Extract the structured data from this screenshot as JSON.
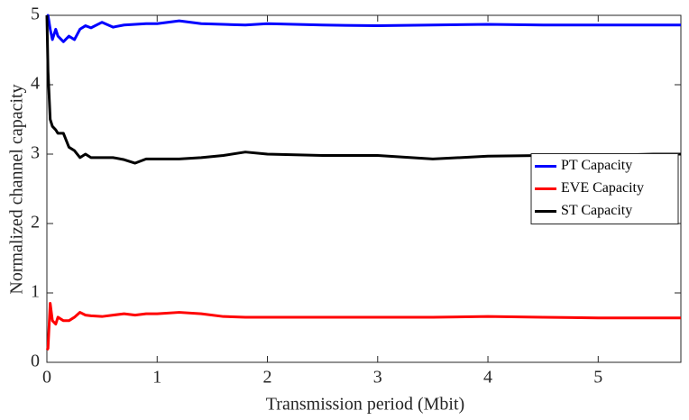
{
  "chart_data": {
    "type": "line",
    "xlabel": "Transmission period (Mbit)",
    "ylabel": "Normalized channel capacity",
    "x": [
      0,
      0.01,
      0.03,
      0.05,
      0.08,
      0.1,
      0.15,
      0.2,
      0.25,
      0.3,
      0.35,
      0.4,
      0.5,
      0.6,
      0.7,
      0.8,
      0.9,
      1.0,
      1.2,
      1.4,
      1.6,
      1.8,
      2.0,
      2.5,
      3.0,
      3.5,
      4.0,
      4.5,
      5.0,
      5.5,
      5.75
    ],
    "series": [
      {
        "name": "PT Capacity",
        "color": "#0000ff",
        "values": [
          4.95,
          5.0,
          4.8,
          4.65,
          4.8,
          4.7,
          4.62,
          4.7,
          4.65,
          4.8,
          4.85,
          4.82,
          4.9,
          4.83,
          4.86,
          4.87,
          4.88,
          4.88,
          4.92,
          4.88,
          4.87,
          4.86,
          4.88,
          4.86,
          4.85,
          4.86,
          4.87,
          4.86,
          4.86,
          4.86,
          4.86
        ]
      },
      {
        "name": "EVE Capacity",
        "color": "#ff0000",
        "values": [
          0.18,
          0.2,
          0.85,
          0.6,
          0.55,
          0.65,
          0.6,
          0.6,
          0.65,
          0.72,
          0.68,
          0.67,
          0.66,
          0.68,
          0.7,
          0.68,
          0.7,
          0.7,
          0.72,
          0.7,
          0.66,
          0.65,
          0.65,
          0.65,
          0.65,
          0.65,
          0.66,
          0.65,
          0.64,
          0.64,
          0.64
        ]
      },
      {
        "name": "ST Capacity",
        "color": "#000000",
        "values": [
          5.0,
          4.2,
          3.5,
          3.4,
          3.35,
          3.3,
          3.3,
          3.1,
          3.05,
          2.95,
          3.0,
          2.95,
          2.95,
          2.95,
          2.92,
          2.87,
          2.93,
          2.93,
          2.93,
          2.95,
          2.98,
          3.03,
          3.0,
          2.98,
          2.98,
          2.93,
          2.97,
          2.98,
          2.98,
          3.0,
          3.0
        ]
      }
    ],
    "xlim": [
      0,
      5.75
    ],
    "xticks": [
      0,
      1,
      2,
      3,
      4,
      5
    ],
    "ylim": [
      0,
      5
    ],
    "yticks": [
      0,
      1,
      2,
      3,
      4,
      5
    ],
    "grid": false,
    "legend": "east"
  }
}
